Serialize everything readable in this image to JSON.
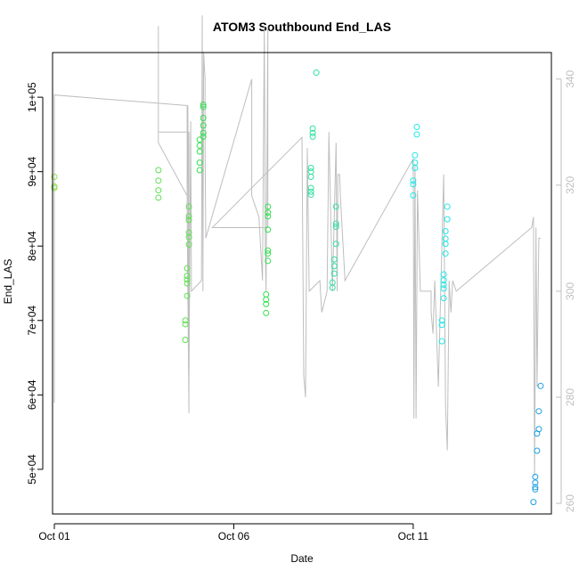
{
  "chart_data": {
    "type": "scatter",
    "title": "ATOM3 Southbound End_LAS",
    "xlabel": "Date",
    "ylabel": "End_LAS",
    "x_ticks": [
      "Oct 01",
      "Oct 06",
      "Oct 11"
    ],
    "y_ticks": [
      "5e+04",
      "6e+04",
      "7e+04",
      "8e+04",
      "9e+04",
      "1e+05"
    ],
    "y_ticks_right": [
      "260",
      "280",
      "300",
      "320",
      "340"
    ],
    "xlim": [
      -0.05,
      13.85
    ],
    "ylim": [
      44000,
      106000
    ],
    "ylim_right": [
      258,
      345
    ],
    "grid": false,
    "legend": "none",
    "colors": {
      "axis": "#000000",
      "right_axis": "#bfbfbf",
      "line": "#bebebe"
    },
    "series": [
      {
        "color": "#8fe050",
        "points": [
          [
            0.0,
            89300
          ],
          [
            0.0,
            88000
          ],
          [
            0.0,
            87800
          ]
        ]
      },
      {
        "color": "#5ee050",
        "points": [
          [
            2.9,
            90200
          ],
          [
            2.9,
            88800
          ],
          [
            2.9,
            87500
          ],
          [
            2.9,
            86500
          ],
          [
            3.75,
            85300
          ],
          [
            3.75,
            84000
          ],
          [
            3.75,
            83500
          ],
          [
            3.75,
            81800
          ],
          [
            3.75,
            81200
          ],
          [
            3.75,
            80200
          ],
          [
            3.7,
            77000
          ],
          [
            3.7,
            76000
          ],
          [
            3.7,
            75500
          ],
          [
            3.7,
            75000
          ],
          [
            3.7,
            73300
          ],
          [
            3.65,
            70000
          ],
          [
            3.65,
            69500
          ],
          [
            3.65,
            67400
          ]
        ]
      },
      {
        "color": "#32e050",
        "points": [
          [
            4.15,
            99000
          ],
          [
            4.15,
            98700
          ],
          [
            4.15,
            97200
          ],
          [
            4.15,
            96200
          ],
          [
            4.15,
            95200
          ],
          [
            4.15,
            94700
          ],
          [
            4.05,
            94300
          ],
          [
            4.05,
            93500
          ],
          [
            4.05,
            92700
          ],
          [
            4.05,
            91200
          ],
          [
            4.05,
            90200
          ],
          [
            5.95,
            85300
          ],
          [
            5.95,
            84500
          ],
          [
            5.95,
            84000
          ],
          [
            5.95,
            82200
          ],
          [
            5.95,
            79400
          ],
          [
            5.95,
            79000
          ],
          [
            5.95,
            78000
          ],
          [
            5.9,
            73500
          ],
          [
            5.9,
            72800
          ],
          [
            5.9,
            72200
          ],
          [
            5.9,
            71000
          ]
        ]
      },
      {
        "color": "#30e0a0",
        "points": [
          [
            7.3,
            103300
          ],
          [
            7.2,
            95800
          ],
          [
            7.2,
            95200
          ],
          [
            7.2,
            94700
          ],
          [
            7.15,
            90500
          ],
          [
            7.15,
            90000
          ],
          [
            7.15,
            89300
          ],
          [
            7.15,
            87800
          ],
          [
            7.15,
            87300
          ],
          [
            7.15,
            86900
          ],
          [
            7.85,
            85300
          ],
          [
            7.85,
            83000
          ],
          [
            7.85,
            82600
          ],
          [
            7.85,
            80300
          ],
          [
            7.8,
            78200
          ],
          [
            7.8,
            77300
          ],
          [
            7.8,
            76300
          ],
          [
            7.75,
            75100
          ],
          [
            7.75,
            74400
          ]
        ]
      },
      {
        "color": "#20e8e8",
        "points": [
          [
            10.1,
            96000
          ],
          [
            10.1,
            95000
          ],
          [
            10.05,
            92200
          ],
          [
            10.05,
            91200
          ],
          [
            10.05,
            90500
          ],
          [
            10.0,
            88800
          ],
          [
            10.0,
            88300
          ],
          [
            10.0,
            86800
          ],
          [
            10.95,
            85300
          ],
          [
            10.95,
            83600
          ],
          [
            10.9,
            82000
          ],
          [
            10.9,
            81000
          ],
          [
            10.9,
            80300
          ],
          [
            10.9,
            79000
          ],
          [
            10.85,
            76200
          ],
          [
            10.85,
            75400
          ],
          [
            10.85,
            74800
          ],
          [
            10.85,
            74300
          ],
          [
            10.85,
            73000
          ],
          [
            10.8,
            70000
          ],
          [
            10.8,
            69400
          ],
          [
            10.8,
            67200
          ]
        ]
      },
      {
        "color": "#1da0e0",
        "points": [
          [
            13.55,
            61200
          ],
          [
            13.5,
            57800
          ],
          [
            13.5,
            55400
          ],
          [
            13.45,
            54800
          ],
          [
            13.45,
            52500
          ],
          [
            13.4,
            49000
          ],
          [
            13.4,
            48200
          ],
          [
            13.4,
            47600
          ],
          [
            13.4,
            47300
          ],
          [
            13.35,
            45600
          ]
        ]
      }
    ],
    "line_series": {
      "axis": "right",
      "points": [
        [
          0.0,
          279
        ],
        [
          0.0,
          337
        ],
        [
          3.7,
          335
        ],
        [
          3.7,
          315
        ],
        [
          3.75,
          277
        ],
        [
          3.75,
          330
        ],
        [
          2.9,
          330
        ],
        [
          2.9,
          350
        ],
        [
          2.9,
          328
        ],
        [
          3.7,
          318
        ],
        [
          3.72,
          335
        ],
        [
          3.75,
          283
        ],
        [
          3.8,
          332
        ],
        [
          3.82,
          300
        ],
        [
          4.1,
          302
        ],
        [
          4.12,
          352
        ],
        [
          4.14,
          300
        ],
        [
          4.16,
          345
        ],
        [
          4.2,
          340
        ],
        [
          4.2,
          327
        ],
        [
          4.22,
          310
        ],
        [
          5.5,
          340
        ],
        [
          5.5,
          318
        ],
        [
          5.7,
          314
        ],
        [
          5.8,
          302
        ],
        [
          5.85,
          350
        ],
        [
          5.88,
          307
        ],
        [
          5.9,
          300
        ],
        [
          5.95,
          350
        ],
        [
          5.95,
          312
        ],
        [
          4.4,
          312
        ],
        [
          6.9,
          329
        ],
        [
          6.95,
          284
        ],
        [
          7.0,
          280
        ],
        [
          7.05,
          327
        ],
        [
          7.1,
          300
        ],
        [
          7.4,
          302
        ],
        [
          7.45,
          296
        ],
        [
          7.6,
          300
        ],
        [
          7.65,
          330
        ],
        [
          7.75,
          300
        ],
        [
          7.85,
          328
        ],
        [
          7.88,
          300
        ],
        [
          7.9,
          322
        ],
        [
          7.95,
          322
        ],
        [
          7.97,
          318
        ],
        [
          8.1,
          302
        ],
        [
          10.0,
          325
        ],
        [
          10.02,
          276
        ],
        [
          10.05,
          324
        ],
        [
          10.08,
          276
        ],
        [
          10.12,
          319
        ],
        [
          10.2,
          300
        ],
        [
          10.5,
          300
        ],
        [
          10.5,
          296
        ],
        [
          10.55,
          292
        ],
        [
          10.6,
          302
        ],
        [
          10.7,
          282
        ],
        [
          10.85,
          322
        ],
        [
          10.9,
          278
        ],
        [
          10.95,
          270
        ],
        [
          11.0,
          302
        ],
        [
          11.05,
          296
        ],
        [
          11.1,
          302
        ],
        [
          11.2,
          300
        ],
        [
          13.3,
          312
        ],
        [
          13.35,
          314
        ],
        [
          13.38,
          265
        ],
        [
          13.42,
          312
        ],
        [
          13.45,
          282
        ],
        [
          13.5,
          310
        ],
        [
          13.55,
          310
        ]
      ]
    }
  }
}
